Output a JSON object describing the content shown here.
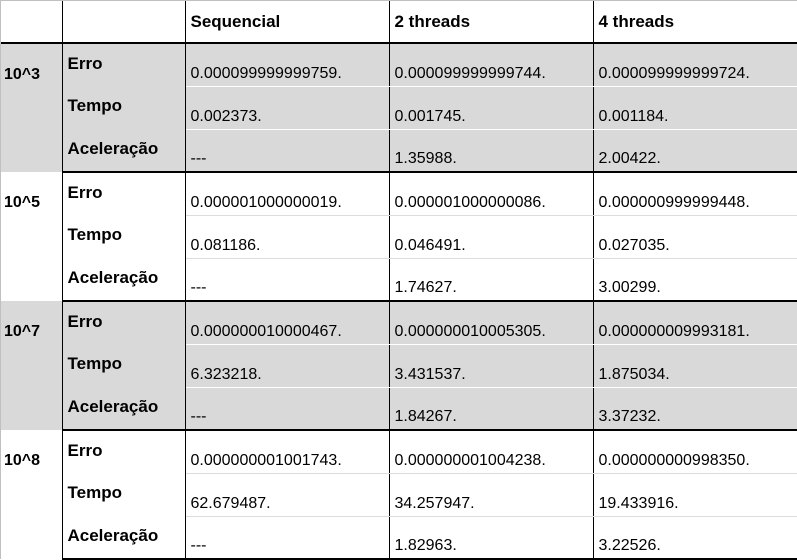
{
  "colors": {
    "shaded_group": "#d9d9d9",
    "white_group": "#ffffff",
    "border": "#000000"
  },
  "header": {
    "blank_1": "",
    "blank_2": "",
    "sequential": "Sequencial",
    "threads2": "2 threads",
    "threads4": "4 threads"
  },
  "groups": [
    {
      "n": "10^3",
      "rows": [
        {
          "metric": "Erro",
          "seq": "0.000099999999759.",
          "t2": "0.000099999999744.",
          "t4": "0.000099999999724."
        },
        {
          "metric": "Tempo",
          "seq": "0.002373.",
          "t2": "0.001745.",
          "t4": "0.001184."
        },
        {
          "metric": "Aceleração",
          "seq": "---",
          "t2": "1.35988.",
          "t4": "2.00422."
        }
      ]
    },
    {
      "n": "10^5",
      "rows": [
        {
          "metric": "Erro",
          "seq": "0.000001000000019.",
          "t2": "0.000001000000086.",
          "t4": "0.000000999999448."
        },
        {
          "metric": "Tempo",
          "seq": "0.081186.",
          "t2": "0.046491.",
          "t4": "0.027035."
        },
        {
          "metric": "Aceleração",
          "seq": "---",
          "t2": "1.74627.",
          "t4": "3.00299."
        }
      ]
    },
    {
      "n": "10^7",
      "rows": [
        {
          "metric": "Erro",
          "seq": "0.000000010000467.",
          "t2": "0.000000010005305.",
          "t4": "0.000000009993181."
        },
        {
          "metric": "Tempo",
          "seq": "6.323218.",
          "t2": "3.431537.",
          "t4": "1.875034."
        },
        {
          "metric": "Aceleração",
          "seq": "---",
          "t2": "1.84267.",
          "t4": "3.37232."
        }
      ]
    },
    {
      "n": "10^8",
      "rows": [
        {
          "metric": "Erro",
          "seq": "0.000000001001743.",
          "t2": "0.000000001004238.",
          "t4": "0.000000000998350."
        },
        {
          "metric": "Tempo",
          "seq": "62.679487.",
          "t2": "34.257947.",
          "t4": "19.433916."
        },
        {
          "metric": "Aceleração",
          "seq": "---",
          "t2": "1.82963.",
          "t4": "3.22526."
        }
      ]
    }
  ]
}
